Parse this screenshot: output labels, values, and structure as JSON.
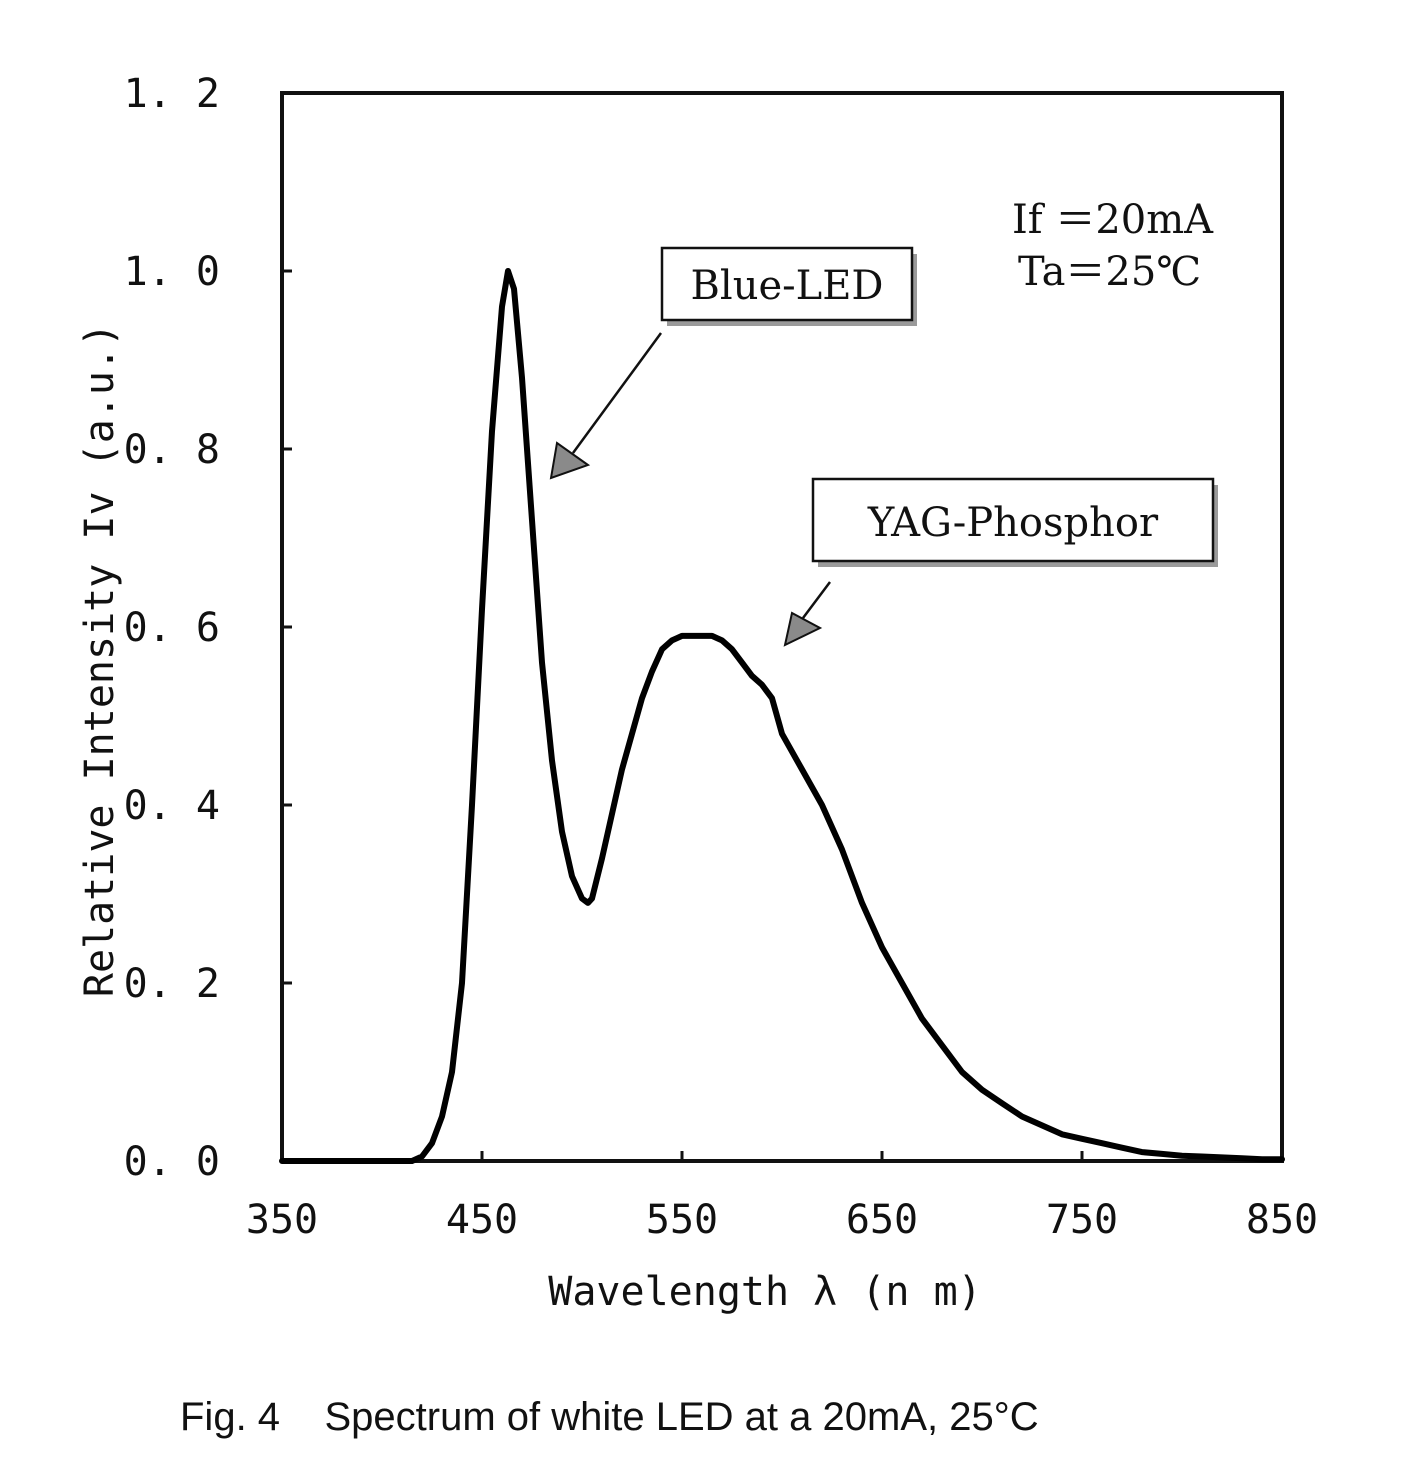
{
  "chart_data": {
    "type": "line",
    "title": "",
    "xlabel": "Wavelength λ (n m)",
    "ylabel": "Relative Intensity Iv (a.u.)",
    "xlim": [
      350,
      850
    ],
    "ylim": [
      0.0,
      1.2
    ],
    "x_ticks": [
      350,
      450,
      550,
      650,
      750,
      850
    ],
    "x_tick_labels": [
      "350",
      "450",
      "550",
      "650",
      "750",
      "850"
    ],
    "y_ticks": [
      0.0,
      0.2,
      0.4,
      0.6,
      0.8,
      1.0,
      1.2
    ],
    "y_tick_labels": [
      "0. 0",
      "0. 2",
      "0. 4",
      "0. 6",
      "0. 8",
      "1. 0",
      "1. 2"
    ],
    "grid": false,
    "legend": "none",
    "line_color": "#000000",
    "series": [
      {
        "x": [
          350,
          400,
          415,
          420,
          425,
          430,
          435,
          440,
          445,
          450,
          455,
          460,
          463,
          466,
          470,
          475,
          480,
          485,
          490,
          495,
          500,
          503,
          505,
          510,
          515,
          520,
          525,
          530,
          535,
          540,
          545,
          550,
          555,
          560,
          565,
          570,
          575,
          580,
          585,
          590,
          595,
          600,
          610,
          620,
          630,
          640,
          650,
          660,
          670,
          680,
          690,
          700,
          710,
          720,
          730,
          740,
          750,
          760,
          770,
          780,
          790,
          800,
          810,
          820,
          830,
          840,
          850
        ],
        "y": [
          0.0,
          0.0,
          0.0,
          0.005,
          0.02,
          0.05,
          0.1,
          0.2,
          0.4,
          0.62,
          0.82,
          0.96,
          1.0,
          0.98,
          0.88,
          0.72,
          0.56,
          0.45,
          0.37,
          0.32,
          0.295,
          0.29,
          0.295,
          0.34,
          0.39,
          0.44,
          0.48,
          0.52,
          0.55,
          0.575,
          0.585,
          0.59,
          0.59,
          0.59,
          0.59,
          0.585,
          0.575,
          0.56,
          0.545,
          0.535,
          0.52,
          0.48,
          0.44,
          0.4,
          0.35,
          0.29,
          0.24,
          0.2,
          0.16,
          0.13,
          0.1,
          0.08,
          0.065,
          0.05,
          0.04,
          0.03,
          0.025,
          0.02,
          0.015,
          0.01,
          0.008,
          0.006,
          0.005,
          0.004,
          0.003,
          0.002,
          0.002
        ]
      }
    ],
    "annotations": [
      {
        "text": "Blue-LED",
        "target_x": 470,
        "target_y": 0.82
      },
      {
        "text": "YAG-Phosphor",
        "target_x": 600,
        "target_y": 0.6
      }
    ],
    "conditions": [
      "If ＝20mA",
      "Ta＝25℃"
    ]
  },
  "caption": {
    "fig_label": "Fig. 4",
    "text": "Spectrum of white LED at a 20mA, 25°C"
  }
}
